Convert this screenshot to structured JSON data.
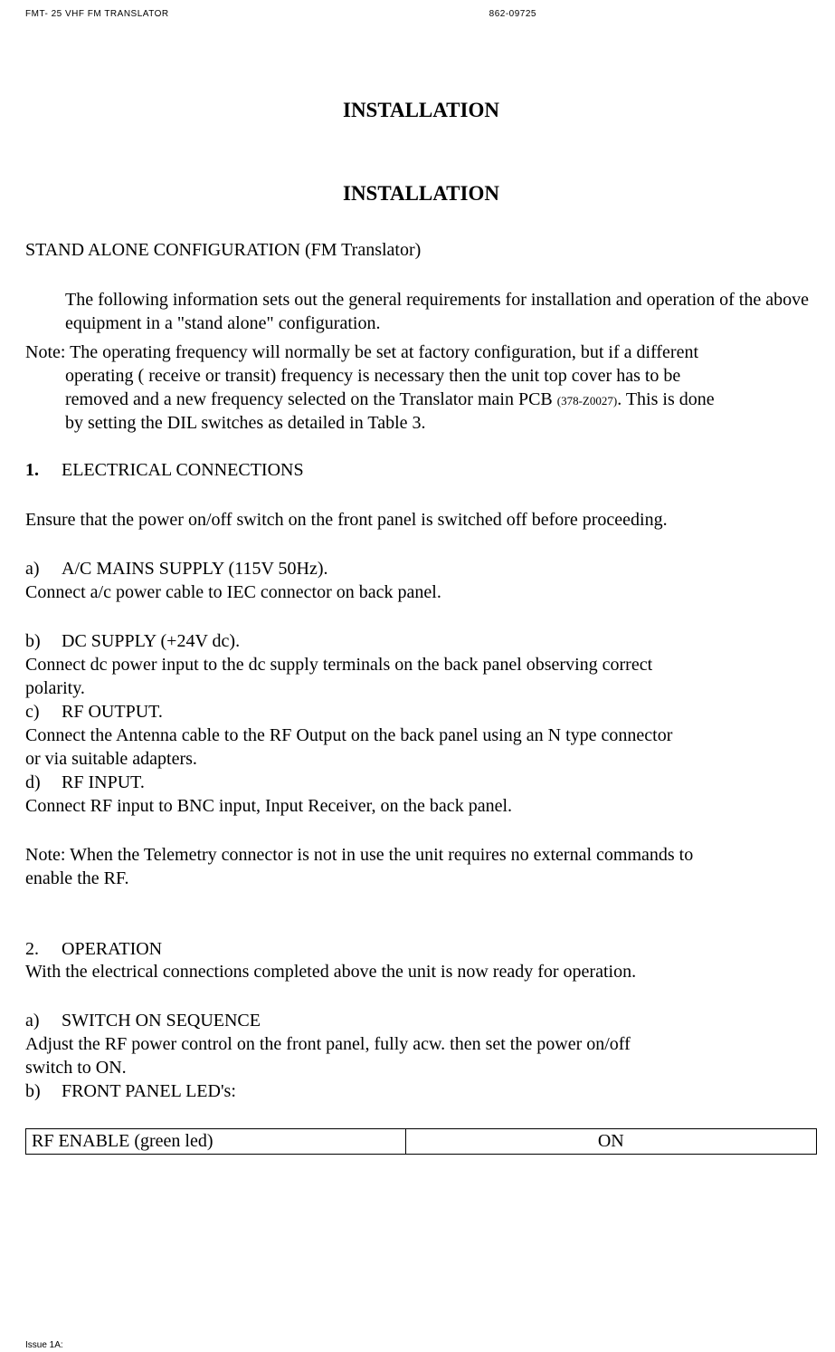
{
  "header": {
    "left": "FMT- 25 VHF FM TRANSLATOR",
    "right": "862-09725"
  },
  "titles": {
    "main": "INSTALLATION",
    "sub": "INSTALLATION"
  },
  "standalone_heading": "STAND ALONE CONFIGURATION (FM Translator)",
  "intro_para": "The following information sets out the general requirements for installation and operation of the above equipment in a \"stand alone\" configuration.",
  "note_prefix": "Note: The operating frequency will normally be set at factory configuration, but if a different",
  "note_line2": "operating ( receive or transit) frequency is necessary then the unit top cover has to be",
  "note_line3a": "removed and a new frequency selected on the Translator main PCB  ",
  "note_part_number": "(378-Z0027)",
  "note_line3b": ". This is done",
  "note_line4": "by setting the DIL  switches as detailed in Table 3.",
  "sec1_num": "1.",
  "sec1_title": "ELECTRICAL CONNECTIONS",
  "sec1_intro": "Ensure that the power on/off switch on the front panel is switched off before proceeding.",
  "items": {
    "a_letter": "a)",
    "a_title": "A/C MAINS SUPPLY (115V 50Hz).",
    "a_body": "Connect a/c power cable to IEC connector on back panel.",
    "b_letter": "b)",
    "b_title": "DC SUPPLY (+24V dc).",
    "b_body1": "Connect dc power input to the dc supply terminals on the back panel observing correct",
    "b_body2": "polarity.",
    "c_letter": "c)",
    "c_title": "RF OUTPUT.",
    "c_body1": "Connect the Antenna cable to the RF Output on the back panel using an N type connector",
    "c_body2": "or via suitable adapters.",
    "d_letter": "d)",
    "d_title": "RF  INPUT.",
    "d_body": "Connect RF input to BNC input, Input Receiver, on the back panel."
  },
  "telemetry_note1": "Note: When the Telemetry connector is not in use the unit requires no external commands to",
  "telemetry_note2": "enable the RF.",
  "sec2_num": "2.",
  "sec2_title": "OPERATION",
  "sec2_intro": "With the electrical connections completed above the unit is now ready for operation.",
  "op_a_letter": "a)",
  "op_a_title": "SWITCH ON SEQUENCE",
  "op_a_body1": "Adjust the RF power control on the front panel, fully acw. then set the power on/off",
  "op_a_body2": "switch to ON.",
  "op_b_letter": "b)",
  "op_b_title": "FRONT PANEL LED's:",
  "led_table": {
    "col1": "RF ENABLE (green led)",
    "col2": "ON"
  },
  "footer": "Issue 1A:"
}
